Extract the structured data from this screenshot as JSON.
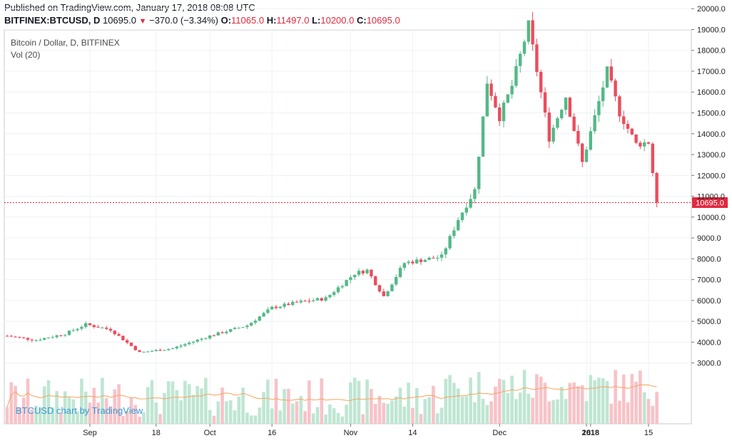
{
  "header": {
    "published": "Published on TradingView.com, January 17, 2018 08:08 UTC",
    "symbol": "BITFINEX:BTCUSD, D",
    "last": "10695.0",
    "change": "−370.0 (−3.34%)",
    "o_label": "O:",
    "o": "11065.0",
    "h_label": "H:",
    "h": "11497.0",
    "l_label": "L:",
    "l": "10200.0",
    "c_label": "C:",
    "c": "10695.0"
  },
  "legend": {
    "title": "Bitcoin / Dollar, D, BITFINEX",
    "volume": "Vol (20)"
  },
  "watermark": "BTCUSD chart by TradingView",
  "price_label": "10695.0",
  "colors": {
    "up": "#53b987",
    "down": "#eb4d5c",
    "vol_up": "#bfe6d3",
    "vol_down": "#f7c3c8",
    "ma": "#f7a35c",
    "price_line": "#e0293f",
    "grid": "#eef1f4"
  },
  "chart_data": {
    "type": "candlestick",
    "title": "Bitcoin / Dollar, D, BITFINEX",
    "x_tick_labels": [
      "Sep",
      "18",
      "Oct",
      "16",
      "Nov",
      "14",
      "Dec",
      "18",
      "2018",
      "15"
    ],
    "y_tick_labels": [
      "3000.0",
      "4000.0",
      "5000.0",
      "6000.0",
      "7000.0",
      "8000.0",
      "9000.0",
      "10000.0",
      "11000.0",
      "12000.0",
      "13000.0",
      "14000.0",
      "15000.0",
      "16000.0",
      "17000.0",
      "18000.0",
      "19000.0",
      "20000.0"
    ],
    "ylim": [
      1000,
      20900
    ],
    "last_price": 10695.0,
    "date_range": [
      "2017-08-13",
      "2018-01-17"
    ],
    "anchors": [
      [
        "2017-08-13",
        4300
      ],
      [
        "2017-08-20",
        4100
      ],
      [
        "2017-08-27",
        4400
      ],
      [
        "2017-09-01",
        4850
      ],
      [
        "2017-09-07",
        4600
      ],
      [
        "2017-09-14",
        3500
      ],
      [
        "2017-09-22",
        3700
      ],
      [
        "2017-10-01",
        4300
      ],
      [
        "2017-10-10",
        4800
      ],
      [
        "2017-10-16",
        5650
      ],
      [
        "2017-10-22",
        5900
      ],
      [
        "2017-10-29",
        6100
      ],
      [
        "2017-11-05",
        7300
      ],
      [
        "2017-11-08",
        7450
      ],
      [
        "2017-11-12",
        6200
      ],
      [
        "2017-11-17",
        7800
      ],
      [
        "2017-11-26",
        8100
      ],
      [
        "2017-11-30",
        9900
      ],
      [
        "2017-12-04",
        11300
      ],
      [
        "2017-12-07",
        16500
      ],
      [
        "2017-12-10",
        14800
      ],
      [
        "2017-12-13",
        16300
      ],
      [
        "2017-12-17",
        19200
      ],
      [
        "2017-12-22",
        13800
      ],
      [
        "2017-12-26",
        15800
      ],
      [
        "2017-12-30",
        12600
      ],
      [
        "2018-01-05",
        17000
      ],
      [
        "2018-01-08",
        15000
      ],
      [
        "2018-01-12",
        13500
      ],
      [
        "2018-01-15",
        13600
      ],
      [
        "2018-01-17",
        10695
      ]
    ],
    "volume_ma_period": 20
  }
}
